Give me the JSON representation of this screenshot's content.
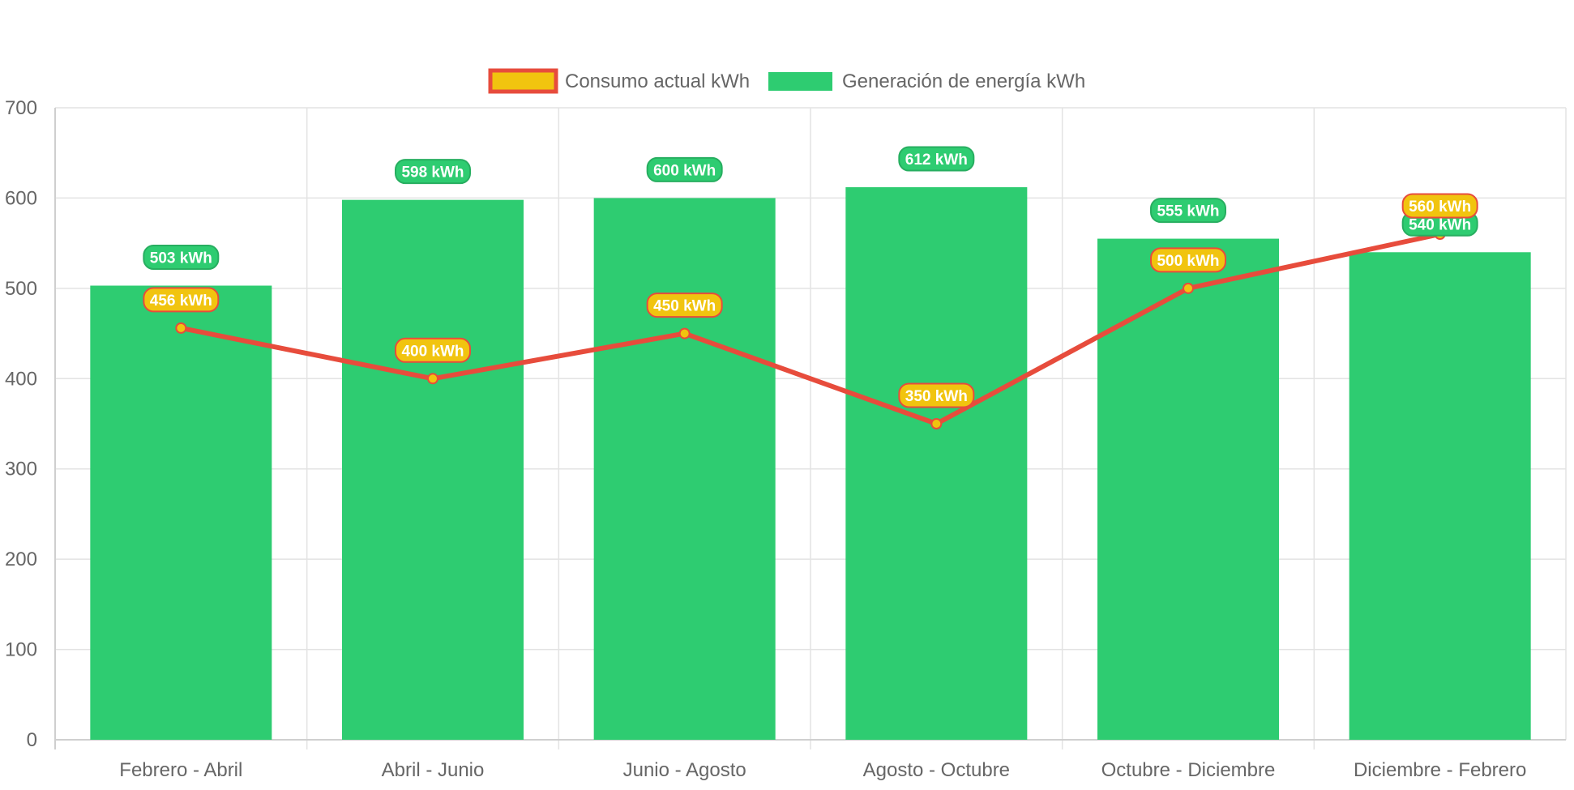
{
  "chart_data": {
    "type": "bar",
    "title": "",
    "xlabel": "",
    "ylabel": "",
    "categories": [
      "Febrero - Abril",
      "Abril - Junio",
      "Junio - Agosto",
      "Agosto - Octubre",
      "Octubre - Diciembre",
      "Diciembre - Febrero"
    ],
    "ylim": [
      0,
      700
    ],
    "yticks": [
      0,
      100,
      200,
      300,
      400,
      500,
      600,
      700
    ],
    "grid": true,
    "legend_position": "top",
    "value_unit": "kWh",
    "series": [
      {
        "name": "Consumo actual kWh",
        "type": "line",
        "values": [
          456,
          400,
          450,
          350,
          500,
          560
        ],
        "labels": [
          "456 kWh",
          "400 kWh",
          "450 kWh",
          "350 kWh",
          "500 kWh",
          "560 kWh"
        ],
        "color": "#e74c3c",
        "fill_color": "#f1c40f"
      },
      {
        "name": "Generación de energía kWh",
        "type": "bar",
        "values": [
          503,
          598,
          600,
          612,
          555,
          540
        ],
        "labels": [
          "503 kWh",
          "598 kWh",
          "600 kWh",
          "612 kWh",
          "555 kWh",
          "540 kWh"
        ],
        "color": "#2ecc71",
        "border_color": "#27ae60"
      }
    ]
  }
}
